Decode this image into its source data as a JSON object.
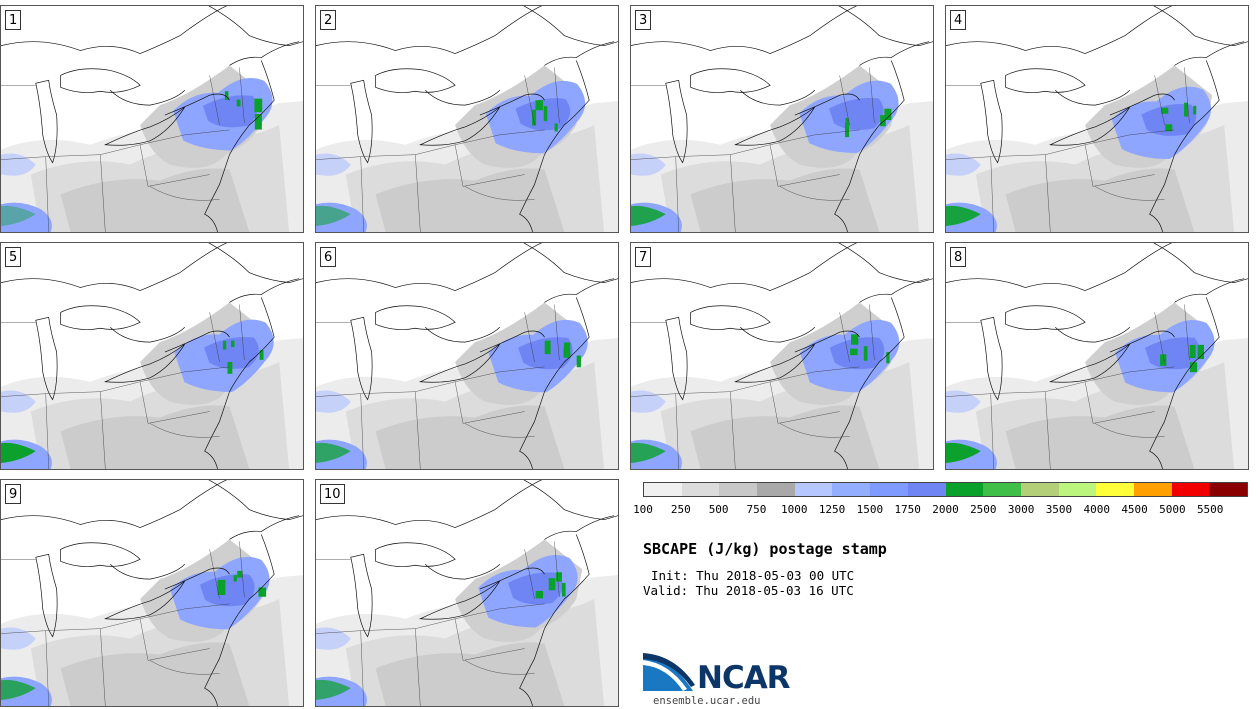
{
  "panels": [
    {
      "label": "1"
    },
    {
      "label": "2"
    },
    {
      "label": "3"
    },
    {
      "label": "4"
    },
    {
      "label": "5"
    },
    {
      "label": "6"
    },
    {
      "label": "7"
    },
    {
      "label": "8"
    },
    {
      "label": "9"
    },
    {
      "label": "10"
    }
  ],
  "colorbar": {
    "colors": [
      "#f0f0f0",
      "#dcdcdc",
      "#c8c8c8",
      "#a9a9a9",
      "#b6c6ff",
      "#94aeff",
      "#7f9bff",
      "#6f85f4",
      "#0aa12a",
      "#3fbf47",
      "#b3cf78",
      "#bbf57e",
      "#ffff3a",
      "#ffa000",
      "#f20000",
      "#8a0000"
    ],
    "ticks": [
      "100",
      "250",
      "500",
      "750",
      "1000",
      "1250",
      "1500",
      "1750",
      "2000",
      "2500",
      "3000",
      "3500",
      "4000",
      "4500",
      "5000",
      "5500"
    ]
  },
  "title": "SBCAPE (J/kg) postage stamp",
  "init": "Init: Thu 2018-05-03 00 UTC",
  "valid": "Valid: Thu 2018-05-03 16 UTC",
  "logo_text": "NCAR",
  "site": "ensemble.ucar.edu"
}
